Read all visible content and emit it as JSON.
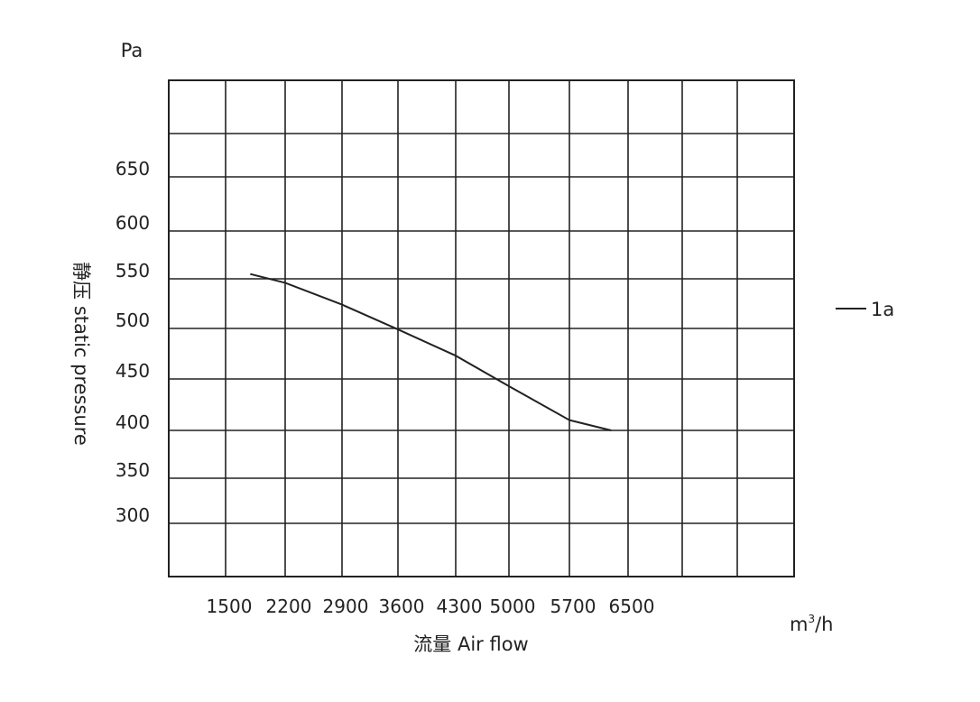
{
  "chart_data": {
    "type": "line",
    "title": "",
    "ylabel": "静压 static pressure",
    "y_unit": "Pa",
    "xlabel": "流量 Air flow",
    "x_unit_base": "m",
    "x_unit_sup": "3",
    "x_unit_tail": "/h",
    "x_ticks": [
      "1500",
      "2200",
      "2900",
      "3600",
      "4300",
      "5000",
      "5700",
      "6500"
    ],
    "y_ticks": [
      "300",
      "350",
      "400",
      "450",
      "500",
      "550",
      "600",
      "650"
    ],
    "ylim": [
      250,
      715
    ],
    "grid": true,
    "legend_position": "right",
    "series": [
      {
        "name": "1a",
        "color": "#222222",
        "points": [
          {
            "x": 1790,
            "y": 555
          },
          {
            "x": 2200,
            "y": 546
          },
          {
            "x": 2900,
            "y": 524
          },
          {
            "x": 3600,
            "y": 499
          },
          {
            "x": 4300,
            "y": 473
          },
          {
            "x": 5000,
            "y": 443
          },
          {
            "x": 5700,
            "y": 410
          },
          {
            "x": 6270,
            "y": 400
          }
        ]
      }
    ]
  }
}
